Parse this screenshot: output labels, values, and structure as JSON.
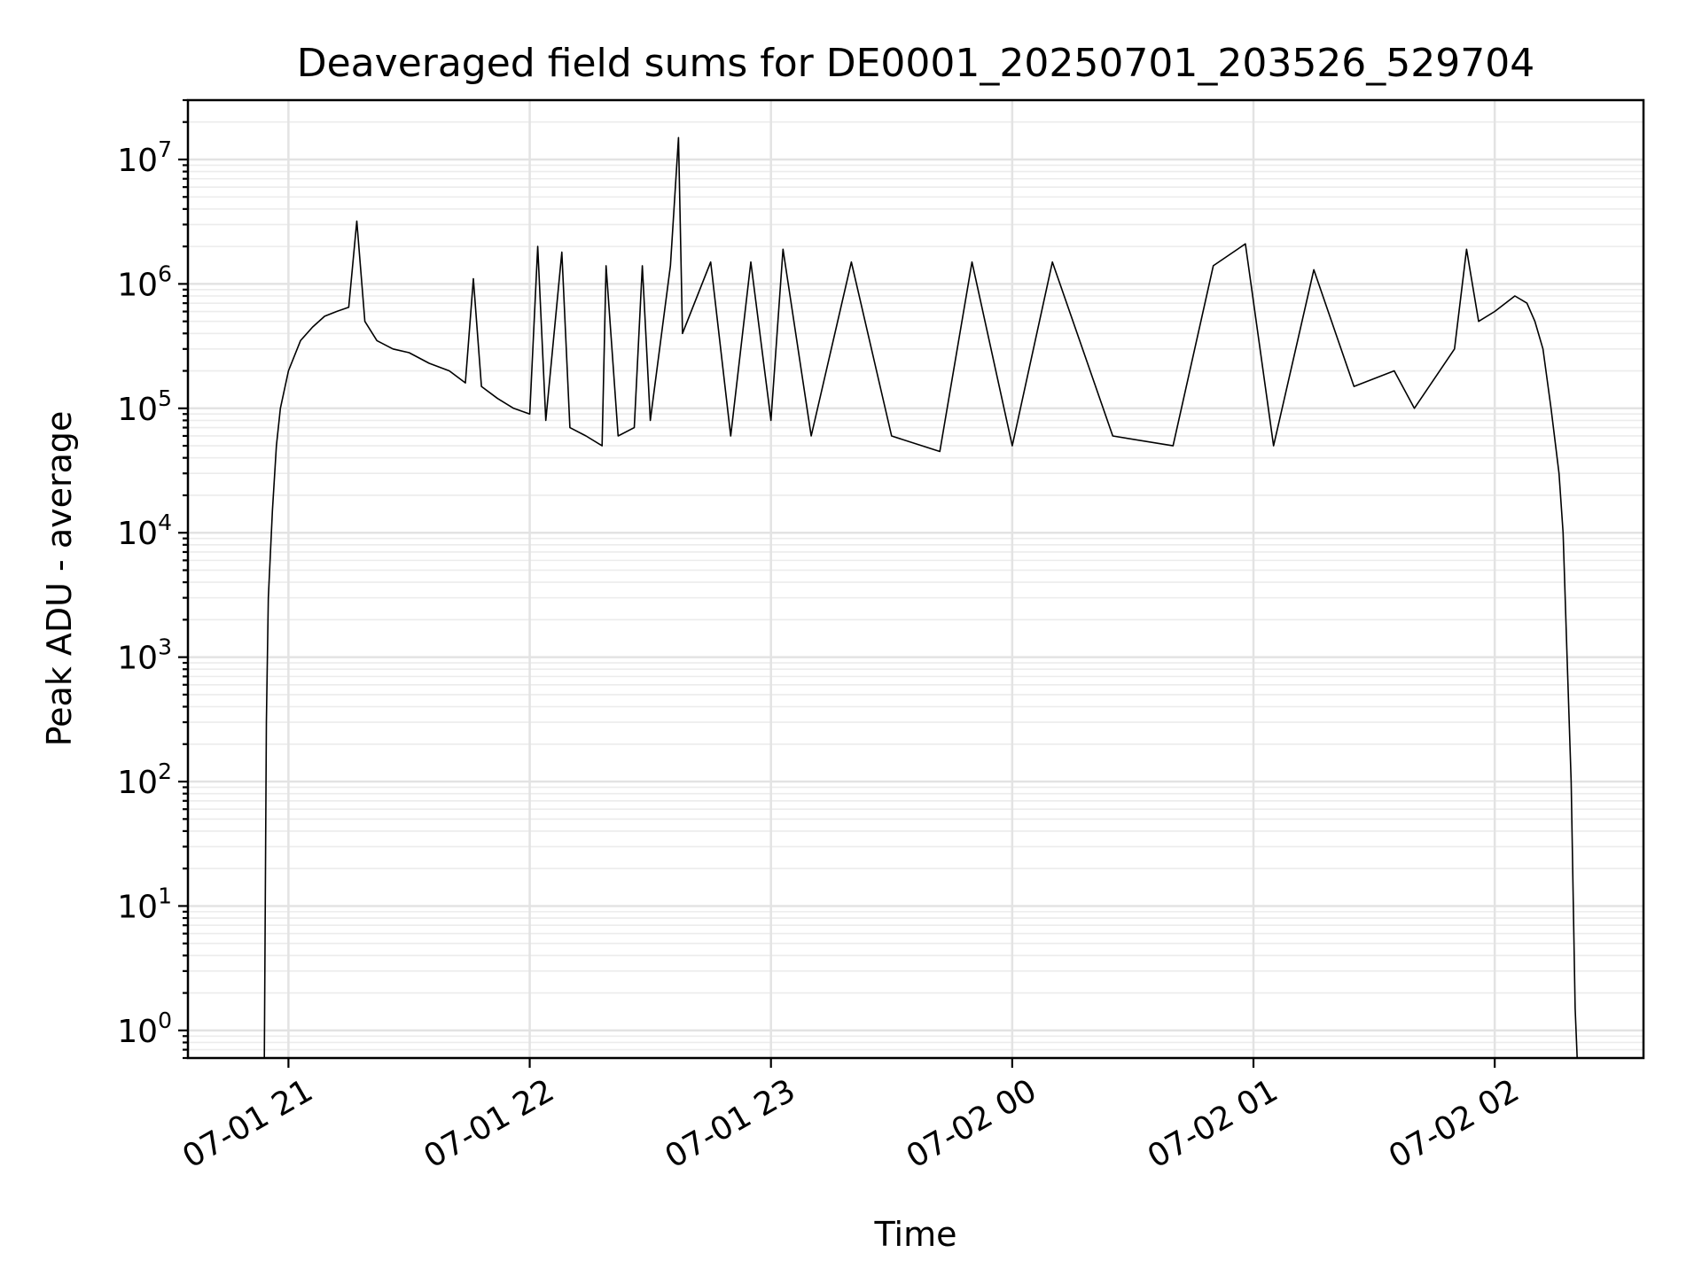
{
  "chart_data": {
    "type": "line",
    "title": "Deaveraged field sums for DE0001_20250701_203526_529704",
    "xlabel": "Time",
    "ylabel": "Peak ADU - average",
    "yscale": "log",
    "ylim": [
      0.6,
      30000000
    ],
    "xlim": [
      "2025-07-01 20:35",
      "2025-07-02 02:37"
    ],
    "grid": true,
    "x_ticks": [
      "2025-07-01 21:00",
      "2025-07-01 22:00",
      "2025-07-01 23:00",
      "2025-07-02 00:00",
      "2025-07-02 01:00",
      "2025-07-02 02:00"
    ],
    "x_tick_labels": [
      "07-01 21",
      "07-01 22",
      "07-01 23",
      "07-02 00",
      "07-02 01",
      "07-02 02"
    ],
    "y_ticks": [
      1,
      10,
      100,
      1000,
      10000,
      100000,
      1000000,
      10000000
    ],
    "y_tick_labels": [
      {
        "base": "10",
        "exp": "0"
      },
      {
        "base": "10",
        "exp": "1"
      },
      {
        "base": "10",
        "exp": "2"
      },
      {
        "base": "10",
        "exp": "3"
      },
      {
        "base": "10",
        "exp": "4"
      },
      {
        "base": "10",
        "exp": "5"
      },
      {
        "base": "10",
        "exp": "6"
      },
      {
        "base": "10",
        "exp": "7"
      }
    ],
    "series": [
      {
        "color": "#000000",
        "points": [
          [
            "2025-07-01 20:54",
            0.6
          ],
          [
            "2025-07-01 20:54:30",
            300
          ],
          [
            "2025-07-01 20:55",
            3000
          ],
          [
            "2025-07-01 20:56",
            15000
          ],
          [
            "2025-07-01 20:57",
            50000
          ],
          [
            "2025-07-01 20:58",
            100000
          ],
          [
            "2025-07-01 21:00",
            200000
          ],
          [
            "2025-07-01 21:03",
            350000
          ],
          [
            "2025-07-01 21:06",
            450000
          ],
          [
            "2025-07-01 21:09",
            550000
          ],
          [
            "2025-07-01 21:12",
            600000
          ],
          [
            "2025-07-01 21:15",
            650000
          ],
          [
            "2025-07-01 21:17",
            3200000
          ],
          [
            "2025-07-01 21:19",
            500000
          ],
          [
            "2025-07-01 21:22",
            350000
          ],
          [
            "2025-07-01 21:26",
            300000
          ],
          [
            "2025-07-01 21:30",
            280000
          ],
          [
            "2025-07-01 21:35",
            230000
          ],
          [
            "2025-07-01 21:40",
            200000
          ],
          [
            "2025-07-01 21:44",
            160000
          ],
          [
            "2025-07-01 21:46",
            1100000
          ],
          [
            "2025-07-01 21:48",
            150000
          ],
          [
            "2025-07-01 21:52",
            120000
          ],
          [
            "2025-07-01 21:56",
            100000
          ],
          [
            "2025-07-01 22:00",
            90000
          ],
          [
            "2025-07-01 22:02",
            2000000
          ],
          [
            "2025-07-01 22:04",
            80000
          ],
          [
            "2025-07-01 22:08",
            1800000
          ],
          [
            "2025-07-01 22:10",
            70000
          ],
          [
            "2025-07-01 22:14",
            60000
          ],
          [
            "2025-07-01 22:18",
            50000
          ],
          [
            "2025-07-01 22:19",
            1400000
          ],
          [
            "2025-07-01 22:22",
            60000
          ],
          [
            "2025-07-01 22:26",
            70000
          ],
          [
            "2025-07-01 22:28",
            1400000
          ],
          [
            "2025-07-01 22:30",
            80000
          ],
          [
            "2025-07-01 22:35",
            1400000
          ],
          [
            "2025-07-01 22:37",
            15000000
          ],
          [
            "2025-07-01 22:38",
            400000
          ],
          [
            "2025-07-01 22:45",
            1500000
          ],
          [
            "2025-07-01 22:50",
            60000
          ],
          [
            "2025-07-01 22:55",
            1500000
          ],
          [
            "2025-07-01 23:00",
            80000
          ],
          [
            "2025-07-01 23:03",
            1900000
          ],
          [
            "2025-07-01 23:10",
            60000
          ],
          [
            "2025-07-01 23:20",
            1500000
          ],
          [
            "2025-07-01 23:30",
            60000
          ],
          [
            "2025-07-01 23:42",
            45000
          ],
          [
            "2025-07-01 23:50",
            1500000
          ],
          [
            "2025-07-02 00:00",
            50000
          ],
          [
            "2025-07-02 00:10",
            1500000
          ],
          [
            "2025-07-02 00:25",
            60000
          ],
          [
            "2025-07-02 00:40",
            50000
          ],
          [
            "2025-07-02 00:50",
            1400000
          ],
          [
            "2025-07-02 00:58",
            2100000
          ],
          [
            "2025-07-02 01:05",
            50000
          ],
          [
            "2025-07-02 01:15",
            1300000
          ],
          [
            "2025-07-02 01:25",
            150000
          ],
          [
            "2025-07-02 01:35",
            200000
          ],
          [
            "2025-07-02 01:40",
            100000
          ],
          [
            "2025-07-02 01:50",
            300000
          ],
          [
            "2025-07-02 01:53",
            1900000
          ],
          [
            "2025-07-02 01:56",
            500000
          ],
          [
            "2025-07-02 02:00",
            600000
          ],
          [
            "2025-07-02 02:05",
            800000
          ],
          [
            "2025-07-02 02:08",
            700000
          ],
          [
            "2025-07-02 02:10",
            500000
          ],
          [
            "2025-07-02 02:12",
            300000
          ],
          [
            "2025-07-02 02:14",
            100000
          ],
          [
            "2025-07-02 02:16",
            30000
          ],
          [
            "2025-07-02 02:17",
            10000
          ],
          [
            "2025-07-02 02:18",
            1000
          ],
          [
            "2025-07-02 02:19",
            100
          ],
          [
            "2025-07-02 02:20",
            1.5
          ],
          [
            "2025-07-02 02:20:30",
            0.6
          ]
        ]
      }
    ]
  }
}
